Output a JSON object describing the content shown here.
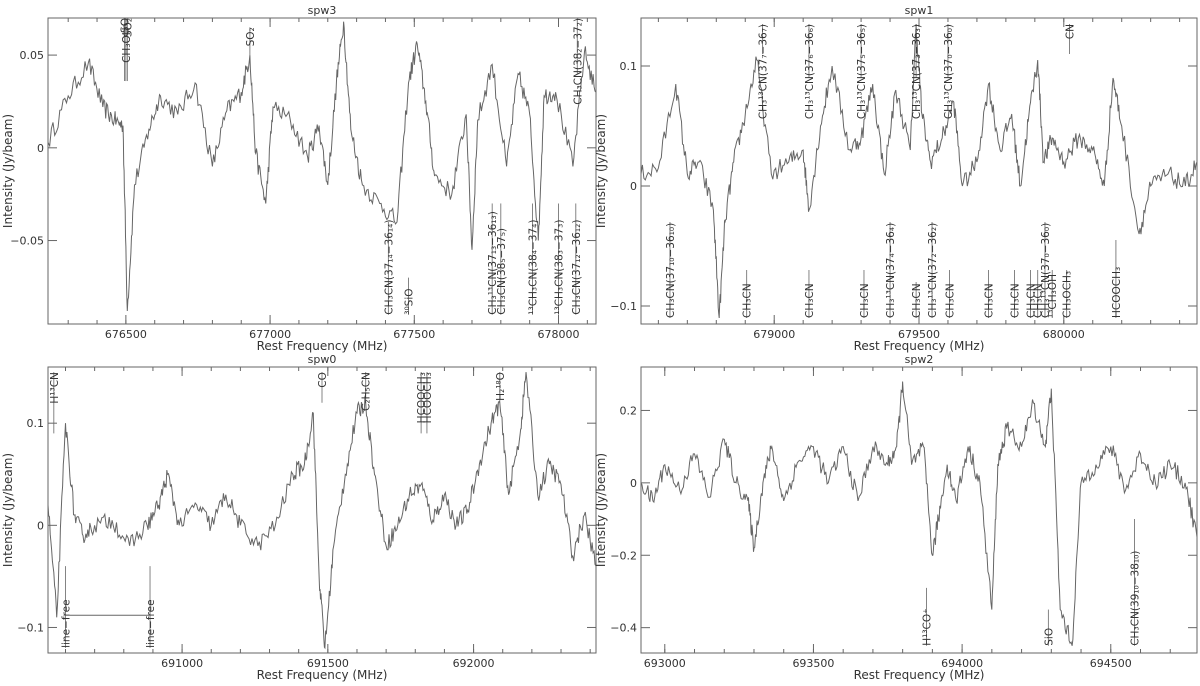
{
  "figure": {
    "xlabel": "Rest Frequency (MHz)",
    "ylabel": "Intensity (Jy/beam)"
  },
  "chart_data": [
    {
      "type": "line",
      "title": "spw3",
      "xlabel": "Rest Frequency (MHz)",
      "ylabel": "Intensity (Jy/beam)",
      "xlim": [
        676230,
        678130
      ],
      "ylim": [
        -0.095,
        0.07
      ],
      "xticks": [
        676500,
        677000,
        677500,
        678000
      ],
      "xtick_labels": [
        "676500",
        "677000",
        "677500",
        "678000"
      ],
      "yticks": [
        -0.05,
        0,
        0.05
      ],
      "ytick_labels": [
        "−0.05",
        "0",
        "0.05"
      ],
      "line_color": "#666666",
      "series": [
        {
          "x": [
            676230,
            676300,
            676370,
            676420,
            676460,
            676490,
            676505,
            676530,
            676580,
            676620,
            676680,
            676740,
            676800,
            676850,
            676900,
            676930,
            676950,
            676985,
            677010,
            677070,
            677130,
            677170,
            677200,
            677230,
            677255,
            677280,
            677320,
            677380,
            677440,
            677480,
            677510,
            677540,
            677570,
            677630,
            677680,
            677700,
            677720,
            677770,
            677820,
            677860,
            677900,
            677930,
            677950,
            677990,
            678050,
            678090,
            678130
          ],
          "y": [
            0.003,
            0.028,
            0.046,
            0.022,
            0.015,
            0.012,
            -0.088,
            -0.02,
            0.01,
            0.028,
            0.018,
            0.035,
            -0.01,
            0.02,
            0.03,
            0.05,
            -0.003,
            -0.03,
            0.022,
            0.015,
            -0.005,
            0.012,
            -0.02,
            0.035,
            0.068,
            0.01,
            -0.02,
            -0.03,
            -0.04,
            0.035,
            0.056,
            0.025,
            -0.015,
            -0.025,
            0.018,
            -0.055,
            0.015,
            0.045,
            -0.01,
            0.04,
            0.018,
            -0.05,
            0.028,
            0.03,
            -0.01,
            0.052,
            0.03
          ]
        }
      ],
      "annotations": [
        {
          "x": 676495,
          "label": "SO",
          "pos": "top",
          "y0": 0.07,
          "y1": 0.036
        },
        {
          "x": 676505,
          "label": "SO₂",
          "pos": "top",
          "y0": 0.07,
          "y1": 0.036
        },
        {
          "x": 676500,
          "label": "CH₃OH",
          "pos": "top",
          "y0": 0.065,
          "y1": 0.036
        },
        {
          "x": 676930,
          "label": "SO₂",
          "pos": "top",
          "y0": 0.065,
          "y1": 0.05
        },
        {
          "x": 677410,
          "label": "CH₃CN(37₁₄−36₁₄)",
          "pos": "bottom",
          "y0": -0.09,
          "y1": -0.04
        },
        {
          "x": 677480,
          "label": "³⁰SiO",
          "pos": "bottom",
          "y0": -0.09,
          "y1": -0.07
        },
        {
          "x": 677770,
          "label": "CH₃¹³CN(37₁₃−36₁₃)",
          "pos": "bottom",
          "y0": -0.09,
          "y1": -0.03
        },
        {
          "x": 677800,
          "label": "CH₃CN(38₅−37₅)",
          "pos": "bottom",
          "y0": -0.09,
          "y1": -0.03
        },
        {
          "x": 677910,
          "label": "¹³CH₃CN(38₄−37₄)",
          "pos": "bottom",
          "y0": -0.09,
          "y1": -0.03
        },
        {
          "x": 678000,
          "label": "¹³CH₃CN(38₃−37₃)",
          "pos": "bottom",
          "y0": -0.09,
          "y1": -0.03
        },
        {
          "x": 678060,
          "label": "CH₃CN(37₁₂−36₁₂)",
          "pos": "bottom",
          "y0": -0.09,
          "y1": -0.03
        },
        {
          "x": 678065,
          "label": "CH₃CN(38₂−37₂)",
          "pos": "top",
          "y0": 0.07,
          "y1": 0.04
        }
      ]
    },
    {
      "type": "line",
      "title": "spw1",
      "xlabel": "Rest Frequency (MHz)",
      "ylabel": "Intensity (Jy/beam)",
      "xlim": [
        678540,
        680460
      ],
      "ylim": [
        -0.115,
        0.14
      ],
      "xticks": [
        679000,
        679500,
        680000
      ],
      "xtick_labels": [
        "679000",
        "679500",
        "680000"
      ],
      "yticks": [
        -0.1,
        0,
        0.1
      ],
      "ytick_labels": [
        "−0.1",
        "0",
        "0.1"
      ],
      "line_color": "#666666",
      "series": [
        {
          "x": [
            678540,
            678600,
            678660,
            678700,
            678740,
            678790,
            678810,
            678830,
            678860,
            678900,
            678940,
            678990,
            679050,
            679100,
            679120,
            679160,
            679200,
            679260,
            679300,
            679340,
            679380,
            679420,
            679470,
            679490,
            679510,
            679540,
            679580,
            679620,
            679650,
            679700,
            679740,
            679780,
            679820,
            679850,
            679880,
            679910,
            679930,
            679960,
            680000,
            680050,
            680100,
            680140,
            680170,
            680200,
            680260,
            680300,
            680360,
            680420,
            680460
          ],
          "y": [
            0.01,
            0.015,
            0.085,
            0.01,
            0.02,
            -0.02,
            -0.11,
            -0.03,
            0.02,
            0.06,
            0.105,
            0.01,
            0.02,
            0.03,
            -0.02,
            0.05,
            0.1,
            0.03,
            0.04,
            0.085,
            0.01,
            0.08,
            0.03,
            0.135,
            0.06,
            0.02,
            0.04,
            0.07,
            0.0,
            0.02,
            0.085,
            0.03,
            0.06,
            0.0,
            0.06,
            0.105,
            0.02,
            0.04,
            0.02,
            0.04,
            0.03,
            0.0,
            0.09,
            0.05,
            -0.04,
            0.0,
            0.01,
            0.0,
            0.02
          ]
        }
      ],
      "annotations": [
        {
          "x": 678640,
          "label": "CH₃CN(37₁₀−36₁₀)",
          "pos": "bottom",
          "y0": -0.11,
          "y1": -0.03
        },
        {
          "x": 678905,
          "label": "CH₃CN",
          "pos": "bottom",
          "y0": -0.11,
          "y1": -0.07
        },
        {
          "x": 678960,
          "label": "CH₃¹³CN(37₇−36₇)",
          "pos": "top",
          "y0": 0.135,
          "y1": 0.11
        },
        {
          "x": 679120,
          "label": "CH₃CN",
          "pos": "bottom",
          "y0": -0.11,
          "y1": -0.07
        },
        {
          "x": 679120,
          "label": "CH₃¹³CN(37₆−36₆)",
          "pos": "top",
          "y0": 0.135,
          "y1": 0.09
        },
        {
          "x": 679310,
          "label": "CH₃CN",
          "pos": "bottom",
          "y0": -0.11,
          "y1": -0.07
        },
        {
          "x": 679300,
          "label": "CH₃¹³CN(37₅−36₅)",
          "pos": "top",
          "y0": 0.135,
          "y1": 0.09
        },
        {
          "x": 679400,
          "label": "CH₃¹³CN(37₄−36₄)",
          "pos": "bottom",
          "y0": -0.11,
          "y1": -0.03
        },
        {
          "x": 679490,
          "label": "CH₃CN",
          "pos": "bottom",
          "y0": -0.11,
          "y1": -0.08
        },
        {
          "x": 679490,
          "label": "CH₃¹³CN(37₃−36₃)",
          "pos": "top",
          "y0": 0.135,
          "y1": 0.09
        },
        {
          "x": 679545,
          "label": "CH₃¹³CN(37₂−36₂)",
          "pos": "bottom",
          "y0": -0.11,
          "y1": -0.03
        },
        {
          "x": 679605,
          "label": "CH₃CN",
          "pos": "bottom",
          "y0": -0.11,
          "y1": -0.07
        },
        {
          "x": 679600,
          "label": "CH₃¹³CN(37₀−36₀)",
          "pos": "top",
          "y0": 0.135,
          "y1": 0.09
        },
        {
          "x": 679740,
          "label": "CH₃CN",
          "pos": "bottom",
          "y0": -0.11,
          "y1": -0.07
        },
        {
          "x": 679830,
          "label": "CH₃CN",
          "pos": "bottom",
          "y0": -0.11,
          "y1": -0.07
        },
        {
          "x": 679885,
          "label": "CH₃CN",
          "pos": "bottom",
          "y0": -0.11,
          "y1": -0.07
        },
        {
          "x": 679935,
          "label": "CH₃¹³CN(37₀−36₀)",
          "pos": "bottom",
          "y0": -0.11,
          "y1": -0.03
        },
        {
          "x": 679910,
          "label": "CH₃CN",
          "pos": "bottom",
          "y0": -0.11,
          "y1": -0.07
        },
        {
          "x": 679960,
          "label": "¹³CH₃OH",
          "pos": "bottom",
          "y0": -0.11,
          "y1": -0.07
        },
        {
          "x": 680010,
          "label": "CH₃OCH₃",
          "pos": "bottom",
          "y0": -0.11,
          "y1": -0.07
        },
        {
          "x": 680020,
          "label": "CN",
          "pos": "top",
          "y0": 0.135,
          "y1": 0.11
        },
        {
          "x": 680180,
          "label": "HCOOCH₃",
          "pos": "bottom",
          "y0": -0.11,
          "y1": -0.045
        }
      ]
    },
    {
      "type": "line",
      "title": "spw0",
      "xlabel": "Rest Frequency (MHz)",
      "ylabel": "Intensity (Jy/beam)",
      "xlim": [
        690540,
        692420
      ],
      "ylim": [
        -0.125,
        0.155
      ],
      "xticks": [
        691000,
        691500,
        692000
      ],
      "xtick_labels": [
        "691000",
        "691500",
        "692000"
      ],
      "yticks": [
        -0.1,
        0,
        0.1
      ],
      "ytick_labels": [
        "−0.1",
        "0",
        "0.1"
      ],
      "line_color": "#666666",
      "series": [
        {
          "x": [
            690540,
            690570,
            690600,
            690630,
            690660,
            690700,
            690760,
            690820,
            690880,
            690920,
            690950,
            690990,
            691050,
            691100,
            691150,
            691200,
            691260,
            691320,
            691380,
            691420,
            691450,
            691470,
            691490,
            691520,
            691560,
            691600,
            691630,
            691660,
            691700,
            691740,
            691780,
            691820,
            691860,
            691900,
            691940,
            691980,
            692020,
            692060,
            692090,
            692120,
            692160,
            692180,
            692220,
            692260,
            692300,
            692340,
            692380,
            692420
          ],
          "y": [
            0.02,
            -0.09,
            0.1,
            0.01,
            -0.01,
            0.0,
            0.005,
            -0.02,
            0.0,
            0.02,
            0.05,
            0.0,
            0.02,
            0.0,
            0.03,
            0.0,
            -0.02,
            0.0,
            0.05,
            0.06,
            0.11,
            -0.05,
            -0.12,
            -0.02,
            0.05,
            0.11,
            0.12,
            0.05,
            -0.02,
            0.0,
            0.03,
            0.04,
            0.005,
            0.03,
            0.0,
            0.015,
            0.06,
            0.1,
            0.12,
            0.03,
            0.09,
            0.15,
            0.03,
            0.06,
            0.04,
            -0.03,
            0.01,
            -0.04
          ]
        }
      ],
      "annotations": [
        {
          "x": 690560,
          "label": "H¹³CN",
          "pos": "top",
          "y0": 0.15,
          "y1": 0.09
        },
        {
          "x": 691480,
          "label": "CO",
          "pos": "top",
          "y0": 0.15,
          "y1": 0.12
        },
        {
          "x": 691630,
          "label": "C₂H₅CN",
          "pos": "top",
          "y0": 0.15,
          "y1": 0.12
        },
        {
          "x": 691820,
          "label": "HCOOCH₃",
          "pos": "top",
          "y0": 0.15,
          "y1": 0.09
        },
        {
          "x": 691840,
          "label": "HCOOCH₃",
          "pos": "top",
          "y0": 0.15,
          "y1": 0.09
        },
        {
          "x": 692090,
          "label": "H₂¹⁸O",
          "pos": "top",
          "y0": 0.15,
          "y1": 0.12
        },
        {
          "x": 690600,
          "label": "line−free",
          "pos": "bottom",
          "y0": -0.12,
          "y1": -0.04
        },
        {
          "x": 690890,
          "label": "line−free",
          "pos": "bottom",
          "y0": -0.12,
          "y1": -0.04
        }
      ],
      "ranges": [
        {
          "x0": 690600,
          "x1": 690890,
          "y": -0.088
        }
      ]
    },
    {
      "type": "line",
      "title": "spw2",
      "xlabel": "Rest Frequency (MHz)",
      "ylabel": "Intensity (Jy/beam)",
      "xlim": [
        692920,
        694790
      ],
      "ylim": [
        -0.47,
        0.32
      ],
      "xticks": [
        693000,
        693500,
        694000,
        694500
      ],
      "xtick_labels": [
        "693000",
        "693500",
        "694000",
        "694500"
      ],
      "yticks": [
        -0.4,
        -0.2,
        0,
        0.2
      ],
      "ytick_labels": [
        "−0.4",
        "−0.2",
        "0",
        "0.2"
      ],
      "line_color": "#666666",
      "series": [
        {
          "x": [
            692920,
            692960,
            693000,
            693050,
            693100,
            693150,
            693200,
            693240,
            693280,
            693300,
            693330,
            693360,
            693400,
            693450,
            693500,
            693550,
            693600,
            693650,
            693700,
            693750,
            693780,
            693800,
            693830,
            693870,
            693900,
            693920,
            693950,
            693980,
            694020,
            694060,
            694100,
            694120,
            694150,
            694200,
            694240,
            694280,
            694300,
            694330,
            694370,
            694400,
            694450,
            694500,
            694550,
            694600,
            694650,
            694700,
            694750,
            694790
          ],
          "y": [
            0.0,
            -0.05,
            0.05,
            -0.02,
            0.08,
            -0.04,
            0.12,
            0.0,
            -0.05,
            -0.18,
            0.0,
            0.1,
            -0.05,
            0.06,
            0.1,
            0.0,
            0.1,
            -0.05,
            0.1,
            0.05,
            0.1,
            0.28,
            0.05,
            0.1,
            -0.2,
            -0.1,
            0.05,
            -0.05,
            0.1,
            0.0,
            -0.35,
            0.05,
            0.15,
            0.1,
            0.22,
            0.1,
            0.26,
            -0.35,
            -0.45,
            0.0,
            0.05,
            0.1,
            -0.02,
            0.08,
            0.0,
            0.05,
            0.0,
            -0.15
          ]
        }
      ],
      "annotations": [
        {
          "x": 693880,
          "label": "H¹³CO⁺",
          "pos": "bottom",
          "y0": -0.45,
          "y1": -0.29
        },
        {
          "x": 694290,
          "label": "SiO",
          "pos": "bottom",
          "y0": -0.45,
          "y1": -0.35
        },
        {
          "x": 694580,
          "label": "CH₃CN(39₁₀−38₁₀)",
          "pos": "bottom",
          "y0": -0.45,
          "y1": -0.1
        }
      ]
    }
  ]
}
